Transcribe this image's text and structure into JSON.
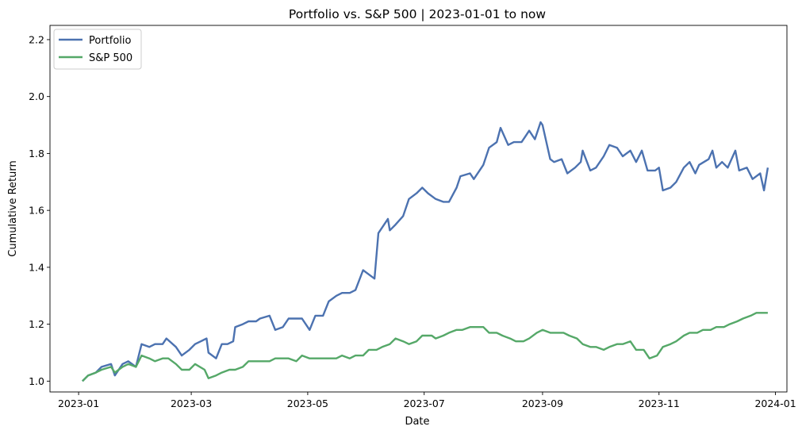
{
  "chart_data": {
    "type": "line",
    "title": "Portfolio vs. S&P 500 | 2023-01-01 to now",
    "xlabel": "Date",
    "ylabel": "Cumulative Return",
    "xlim": [
      "2022-12-17",
      "2024-01-07"
    ],
    "ylim": [
      0.962,
      2.25
    ],
    "grid": false,
    "legend_position": "top-left",
    "x_ticks": [
      "2023-01-01",
      "2023-03-01",
      "2023-05-01",
      "2023-07-01",
      "2023-09-01",
      "2023-11-01",
      "2024-01-01"
    ],
    "x_tick_labels": [
      "2023-01",
      "2023-03",
      "2023-05",
      "2023-07",
      "2023-09",
      "2023-11",
      "2024-01"
    ],
    "y_ticks": [
      1.0,
      1.2,
      1.4,
      1.6,
      1.8,
      2.0,
      2.2
    ],
    "y_tick_labels": [
      "1.0",
      "1.2",
      "1.4",
      "1.6",
      "1.8",
      "2.0",
      "2.2"
    ],
    "series": [
      {
        "name": "Portfolio",
        "color": "#4c72b0",
        "points": [
          [
            "2023-01-03",
            1.0
          ],
          [
            "2023-01-06",
            1.02
          ],
          [
            "2023-01-10",
            1.03
          ],
          [
            "2023-01-13",
            1.05
          ],
          [
            "2023-01-18",
            1.06
          ],
          [
            "2023-01-20",
            1.02
          ],
          [
            "2023-01-24",
            1.06
          ],
          [
            "2023-01-27",
            1.07
          ],
          [
            "2023-01-31",
            1.05
          ],
          [
            "2023-02-03",
            1.13
          ],
          [
            "2023-02-07",
            1.12
          ],
          [
            "2023-02-10",
            1.13
          ],
          [
            "2023-02-14",
            1.13
          ],
          [
            "2023-02-16",
            1.15
          ],
          [
            "2023-02-21",
            1.12
          ],
          [
            "2023-02-24",
            1.09
          ],
          [
            "2023-02-28",
            1.11
          ],
          [
            "2023-03-03",
            1.13
          ],
          [
            "2023-03-06",
            1.14
          ],
          [
            "2023-03-09",
            1.15
          ],
          [
            "2023-03-10",
            1.1
          ],
          [
            "2023-03-14",
            1.08
          ],
          [
            "2023-03-17",
            1.13
          ],
          [
            "2023-03-20",
            1.13
          ],
          [
            "2023-03-23",
            1.14
          ],
          [
            "2023-03-24",
            1.19
          ],
          [
            "2023-03-28",
            1.2
          ],
          [
            "2023-03-31",
            1.21
          ],
          [
            "2023-04-04",
            1.21
          ],
          [
            "2023-04-06",
            1.22
          ],
          [
            "2023-04-11",
            1.23
          ],
          [
            "2023-04-14",
            1.18
          ],
          [
            "2023-04-18",
            1.19
          ],
          [
            "2023-04-21",
            1.22
          ],
          [
            "2023-04-25",
            1.22
          ],
          [
            "2023-04-28",
            1.22
          ],
          [
            "2023-05-02",
            1.18
          ],
          [
            "2023-05-05",
            1.23
          ],
          [
            "2023-05-09",
            1.23
          ],
          [
            "2023-05-12",
            1.28
          ],
          [
            "2023-05-16",
            1.3
          ],
          [
            "2023-05-19",
            1.31
          ],
          [
            "2023-05-23",
            1.31
          ],
          [
            "2023-05-26",
            1.32
          ],
          [
            "2023-05-30",
            1.39
          ],
          [
            "2023-06-01",
            1.38
          ],
          [
            "2023-06-05",
            1.36
          ],
          [
            "2023-06-07",
            1.52
          ],
          [
            "2023-06-12",
            1.57
          ],
          [
            "2023-06-13",
            1.53
          ],
          [
            "2023-06-16",
            1.55
          ],
          [
            "2023-06-20",
            1.58
          ],
          [
            "2023-06-23",
            1.64
          ],
          [
            "2023-06-27",
            1.66
          ],
          [
            "2023-06-30",
            1.68
          ],
          [
            "2023-07-03",
            1.66
          ],
          [
            "2023-07-07",
            1.64
          ],
          [
            "2023-07-11",
            1.63
          ],
          [
            "2023-07-14",
            1.63
          ],
          [
            "2023-07-18",
            1.68
          ],
          [
            "2023-07-20",
            1.72
          ],
          [
            "2023-07-25",
            1.73
          ],
          [
            "2023-07-27",
            1.71
          ],
          [
            "2023-08-01",
            1.76
          ],
          [
            "2023-08-04",
            1.82
          ],
          [
            "2023-08-08",
            1.84
          ],
          [
            "2023-08-10",
            1.89
          ],
          [
            "2023-08-14",
            1.83
          ],
          [
            "2023-08-17",
            1.84
          ],
          [
            "2023-08-21",
            1.84
          ],
          [
            "2023-08-23",
            1.86
          ],
          [
            "2023-08-25",
            1.88
          ],
          [
            "2023-08-28",
            1.85
          ],
          [
            "2023-08-31",
            1.91
          ],
          [
            "2023-09-01",
            1.9
          ],
          [
            "2023-09-05",
            1.78
          ],
          [
            "2023-09-07",
            1.77
          ],
          [
            "2023-09-11",
            1.78
          ],
          [
            "2023-09-14",
            1.73
          ],
          [
            "2023-09-18",
            1.75
          ],
          [
            "2023-09-21",
            1.77
          ],
          [
            "2023-09-22",
            1.81
          ],
          [
            "2023-09-26",
            1.74
          ],
          [
            "2023-09-29",
            1.75
          ],
          [
            "2023-10-03",
            1.79
          ],
          [
            "2023-10-06",
            1.83
          ],
          [
            "2023-10-10",
            1.82
          ],
          [
            "2023-10-13",
            1.79
          ],
          [
            "2023-10-17",
            1.81
          ],
          [
            "2023-10-20",
            1.77
          ],
          [
            "2023-10-23",
            1.81
          ],
          [
            "2023-10-26",
            1.74
          ],
          [
            "2023-10-30",
            1.74
          ],
          [
            "2023-11-01",
            1.75
          ],
          [
            "2023-11-03",
            1.67
          ],
          [
            "2023-11-07",
            1.68
          ],
          [
            "2023-11-10",
            1.7
          ],
          [
            "2023-11-14",
            1.75
          ],
          [
            "2023-11-17",
            1.77
          ],
          [
            "2023-11-20",
            1.73
          ],
          [
            "2023-11-22",
            1.76
          ],
          [
            "2023-11-27",
            1.78
          ],
          [
            "2023-11-29",
            1.81
          ],
          [
            "2023-12-01",
            1.75
          ],
          [
            "2023-12-04",
            1.77
          ],
          [
            "2023-12-07",
            1.75
          ],
          [
            "2023-12-11",
            1.81
          ],
          [
            "2023-12-13",
            1.74
          ],
          [
            "2023-12-17",
            1.75
          ],
          [
            "2023-12-20",
            1.71
          ],
          [
            "2023-12-24",
            1.73
          ],
          [
            "2023-12-26",
            1.67
          ],
          [
            "2023-12-28",
            1.75
          ]
        ]
      },
      {
        "name": "S&P 500",
        "color": "#55a868",
        "points": [
          [
            "2023-01-03",
            1.0
          ],
          [
            "2023-01-06",
            1.02
          ],
          [
            "2023-01-10",
            1.03
          ],
          [
            "2023-01-13",
            1.04
          ],
          [
            "2023-01-18",
            1.05
          ],
          [
            "2023-01-20",
            1.03
          ],
          [
            "2023-01-24",
            1.05
          ],
          [
            "2023-01-27",
            1.06
          ],
          [
            "2023-01-31",
            1.05
          ],
          [
            "2023-02-03",
            1.09
          ],
          [
            "2023-02-07",
            1.08
          ],
          [
            "2023-02-10",
            1.07
          ],
          [
            "2023-02-14",
            1.08
          ],
          [
            "2023-02-17",
            1.08
          ],
          [
            "2023-02-21",
            1.06
          ],
          [
            "2023-02-24",
            1.04
          ],
          [
            "2023-02-28",
            1.04
          ],
          [
            "2023-03-03",
            1.06
          ],
          [
            "2023-03-08",
            1.04
          ],
          [
            "2023-03-10",
            1.01
          ],
          [
            "2023-03-14",
            1.02
          ],
          [
            "2023-03-17",
            1.03
          ],
          [
            "2023-03-21",
            1.04
          ],
          [
            "2023-03-24",
            1.04
          ],
          [
            "2023-03-28",
            1.05
          ],
          [
            "2023-03-31",
            1.07
          ],
          [
            "2023-04-04",
            1.07
          ],
          [
            "2023-04-07",
            1.07
          ],
          [
            "2023-04-11",
            1.07
          ],
          [
            "2023-04-14",
            1.08
          ],
          [
            "2023-04-18",
            1.08
          ],
          [
            "2023-04-21",
            1.08
          ],
          [
            "2023-04-25",
            1.07
          ],
          [
            "2023-04-28",
            1.09
          ],
          [
            "2023-05-02",
            1.08
          ],
          [
            "2023-05-05",
            1.08
          ],
          [
            "2023-05-09",
            1.08
          ],
          [
            "2023-05-12",
            1.08
          ],
          [
            "2023-05-16",
            1.08
          ],
          [
            "2023-05-19",
            1.09
          ],
          [
            "2023-05-23",
            1.08
          ],
          [
            "2023-05-26",
            1.09
          ],
          [
            "2023-05-30",
            1.09
          ],
          [
            "2023-06-02",
            1.11
          ],
          [
            "2023-06-06",
            1.11
          ],
          [
            "2023-06-09",
            1.12
          ],
          [
            "2023-06-13",
            1.13
          ],
          [
            "2023-06-16",
            1.15
          ],
          [
            "2023-06-20",
            1.14
          ],
          [
            "2023-06-23",
            1.13
          ],
          [
            "2023-06-27",
            1.14
          ],
          [
            "2023-06-30",
            1.16
          ],
          [
            "2023-07-05",
            1.16
          ],
          [
            "2023-07-07",
            1.15
          ],
          [
            "2023-07-11",
            1.16
          ],
          [
            "2023-07-14",
            1.17
          ],
          [
            "2023-07-18",
            1.18
          ],
          [
            "2023-07-21",
            1.18
          ],
          [
            "2023-07-25",
            1.19
          ],
          [
            "2023-07-28",
            1.19
          ],
          [
            "2023-08-01",
            1.19
          ],
          [
            "2023-08-04",
            1.17
          ],
          [
            "2023-08-08",
            1.17
          ],
          [
            "2023-08-11",
            1.16
          ],
          [
            "2023-08-15",
            1.15
          ],
          [
            "2023-08-18",
            1.14
          ],
          [
            "2023-08-22",
            1.14
          ],
          [
            "2023-08-25",
            1.15
          ],
          [
            "2023-08-29",
            1.17
          ],
          [
            "2023-09-01",
            1.18
          ],
          [
            "2023-09-05",
            1.17
          ],
          [
            "2023-09-08",
            1.17
          ],
          [
            "2023-09-12",
            1.17
          ],
          [
            "2023-09-15",
            1.16
          ],
          [
            "2023-09-19",
            1.15
          ],
          [
            "2023-09-22",
            1.13
          ],
          [
            "2023-09-26",
            1.12
          ],
          [
            "2023-09-29",
            1.12
          ],
          [
            "2023-10-03",
            1.11
          ],
          [
            "2023-10-06",
            1.12
          ],
          [
            "2023-10-10",
            1.13
          ],
          [
            "2023-10-13",
            1.13
          ],
          [
            "2023-10-17",
            1.14
          ],
          [
            "2023-10-20",
            1.11
          ],
          [
            "2023-10-24",
            1.11
          ],
          [
            "2023-10-27",
            1.08
          ],
          [
            "2023-10-31",
            1.09
          ],
          [
            "2023-11-03",
            1.12
          ],
          [
            "2023-11-07",
            1.13
          ],
          [
            "2023-11-10",
            1.14
          ],
          [
            "2023-11-14",
            1.16
          ],
          [
            "2023-11-17",
            1.17
          ],
          [
            "2023-11-21",
            1.17
          ],
          [
            "2023-11-24",
            1.18
          ],
          [
            "2023-11-28",
            1.18
          ],
          [
            "2023-12-01",
            1.19
          ],
          [
            "2023-12-05",
            1.19
          ],
          [
            "2023-12-08",
            1.2
          ],
          [
            "2023-12-12",
            1.21
          ],
          [
            "2023-12-15",
            1.22
          ],
          [
            "2023-12-19",
            1.23
          ],
          [
            "2023-12-22",
            1.24
          ],
          [
            "2023-12-27",
            1.24
          ],
          [
            "2023-12-28",
            1.24
          ]
        ]
      }
    ]
  }
}
